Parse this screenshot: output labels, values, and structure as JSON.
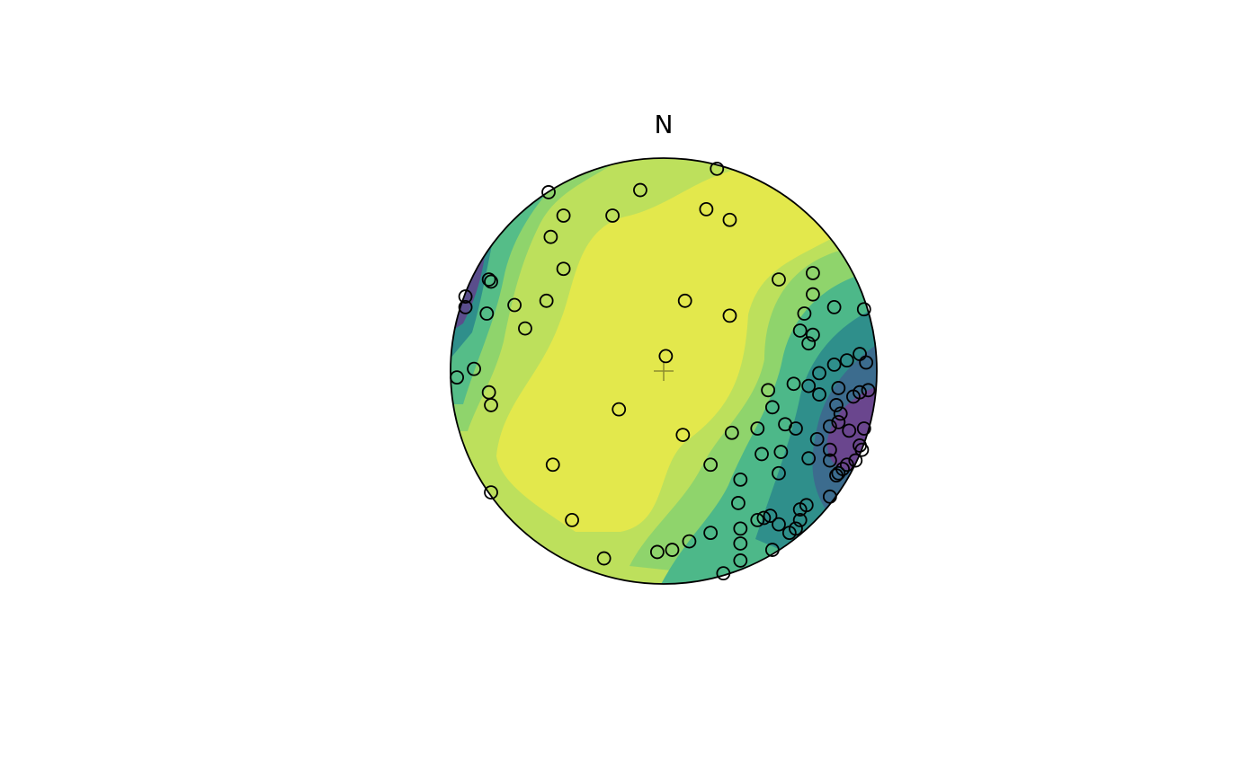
{
  "chart_data": {
    "type": "scatter",
    "title": "N",
    "x": [
      0.25,
      -0.54,
      -0.11,
      -0.47,
      -0.24,
      0.2,
      0.31,
      -0.53,
      -0.47,
      0.54,
      0.7,
      -0.82,
      -0.81,
      -0.93,
      -0.93,
      -0.83,
      -0.7,
      -0.55,
      -0.65,
      0.1,
      0.31,
      0.7,
      0.8,
      0.94,
      0.66,
      0.64,
      0.7,
      0.68,
      0.01,
      -0.89,
      -0.97,
      -0.82,
      -0.81,
      0.92,
      0.95,
      0.86,
      0.8,
      0.73,
      0.61,
      0.68,
      0.73,
      0.82,
      0.92,
      0.96,
      0.89,
      0.49,
      0.81,
      0.83,
      0.51,
      0.82,
      0.78,
      -0.21,
      0.57,
      0.62,
      0.44,
      0.32,
      0.09,
      0.87,
      0.94,
      0.72,
      0.92,
      0.93,
      0.78,
      0.55,
      0.46,
      0.68,
      0.78,
      0.9,
      0.86,
      0.84,
      0.82,
      0.81,
      0.22,
      -0.52,
      0.54,
      0.36,
      -0.81,
      0.78,
      0.35,
      0.67,
      0.64,
      0.5,
      0.47,
      0.44,
      -0.43,
      0.64,
      0.54,
      0.62,
      0.59,
      0.36,
      0.22,
      0.12,
      0.04,
      -0.03,
      0.36,
      0.51,
      -0.28,
      0.36,
      0.28
    ],
    "y": [
      0.95,
      0.84,
      0.85,
      0.73,
      0.73,
      0.76,
      0.71,
      0.63,
      0.48,
      0.43,
      0.46,
      0.43,
      0.42,
      0.35,
      0.3,
      0.27,
      0.31,
      0.33,
      0.2,
      0.33,
      0.26,
      0.36,
      0.3,
      0.29,
      0.27,
      0.19,
      0.17,
      0.13,
      0.07,
      0.01,
      -0.03,
      -0.1,
      -0.16,
      0.08,
      0.04,
      0.05,
      0.03,
      -0.01,
      -0.06,
      -0.07,
      -0.11,
      -0.08,
      -0.1,
      -0.09,
      -0.12,
      -0.09,
      -0.16,
      -0.2,
      -0.17,
      -0.24,
      -0.26,
      -0.18,
      -0.25,
      -0.27,
      -0.27,
      -0.29,
      -0.3,
      -0.28,
      -0.27,
      -0.32,
      -0.35,
      -0.37,
      -0.37,
      -0.38,
      -0.39,
      -0.41,
      -0.42,
      -0.42,
      -0.44,
      -0.46,
      -0.48,
      -0.49,
      -0.44,
      -0.44,
      -0.48,
      -0.51,
      -0.57,
      -0.59,
      -0.62,
      -0.63,
      -0.65,
      -0.68,
      -0.69,
      -0.7,
      -0.7,
      -0.7,
      -0.72,
      -0.74,
      -0.76,
      -0.74,
      -0.76,
      -0.8,
      -0.84,
      -0.85,
      -0.81,
      -0.84,
      -0.88,
      -0.89,
      -0.95
    ],
    "xlim": [
      -1,
      1
    ],
    "ylim": [
      -1,
      1
    ],
    "color": "#000000"
  }
}
